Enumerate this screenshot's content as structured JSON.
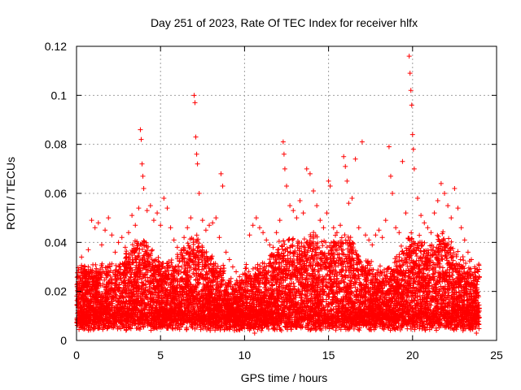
{
  "chart_data": {
    "type": "scatter",
    "title": "Day 251 of 2023, Rate Of TEC Index for receiver hlfx",
    "xlabel": "GPS time / hours",
    "ylabel": "ROTI / TECUs",
    "xlim": [
      0,
      25
    ],
    "ylim": [
      0,
      0.12
    ],
    "x_ticks": [
      "0",
      "5",
      "10",
      "15",
      "20",
      "25"
    ],
    "y_ticks": [
      "0",
      "0.02",
      "0.04",
      "0.06",
      "0.08",
      "0.1",
      "0.12"
    ],
    "grid": true,
    "marker": "+",
    "color": "#ff0000",
    "series": [
      {
        "points": [
          [
            0.1,
            0.024
          ],
          [
            0.3,
            0.034
          ],
          [
            0.5,
            0.03
          ],
          [
            0.7,
            0.037
          ],
          [
            0.9,
            0.049
          ],
          [
            1.1,
            0.046
          ],
          [
            1.3,
            0.048
          ],
          [
            1.5,
            0.039
          ],
          [
            1.7,
            0.045
          ],
          [
            1.9,
            0.05
          ],
          [
            2.1,
            0.043
          ],
          [
            2.3,
            0.036
          ],
          [
            2.5,
            0.04
          ],
          [
            2.7,
            0.042
          ],
          [
            2.9,
            0.038
          ],
          [
            3.1,
            0.044
          ],
          [
            3.3,
            0.051
          ],
          [
            3.5,
            0.047
          ],
          [
            3.7,
            0.054
          ],
          [
            3.8,
            0.086
          ],
          [
            3.85,
            0.082
          ],
          [
            3.9,
            0.072
          ],
          [
            3.95,
            0.067
          ],
          [
            4.0,
            0.062
          ],
          [
            4.2,
            0.053
          ],
          [
            4.4,
            0.055
          ],
          [
            4.6,
            0.049
          ],
          [
            4.8,
            0.052
          ],
          [
            5.0,
            0.047
          ],
          [
            5.2,
            0.058
          ],
          [
            5.4,
            0.054
          ],
          [
            5.6,
            0.046
          ],
          [
            5.8,
            0.041
          ],
          [
            6.0,
            0.038
          ],
          [
            6.2,
            0.035
          ],
          [
            6.4,
            0.042
          ],
          [
            6.6,
            0.046
          ],
          [
            6.8,
            0.05
          ],
          [
            7.0,
            0.1
          ],
          [
            7.05,
            0.097
          ],
          [
            7.1,
            0.083
          ],
          [
            7.15,
            0.076
          ],
          [
            7.2,
            0.072
          ],
          [
            7.3,
            0.06
          ],
          [
            7.5,
            0.049
          ],
          [
            7.7,
            0.045
          ],
          [
            7.9,
            0.047
          ],
          [
            8.1,
            0.048
          ],
          [
            8.3,
            0.05
          ],
          [
            8.5,
            0.042
          ],
          [
            8.6,
            0.068
          ],
          [
            8.7,
            0.063
          ],
          [
            8.9,
            0.036
          ],
          [
            9.1,
            0.033
          ],
          [
            9.3,
            0.03
          ],
          [
            9.5,
            0.028
          ],
          [
            9.7,
            0.026
          ],
          [
            9.9,
            0.027
          ],
          [
            10.1,
            0.031
          ],
          [
            10.3,
            0.043
          ],
          [
            10.5,
            0.047
          ],
          [
            10.7,
            0.05
          ],
          [
            10.9,
            0.046
          ],
          [
            11.1,
            0.044
          ],
          [
            11.3,
            0.041
          ],
          [
            11.5,
            0.039
          ],
          [
            11.7,
            0.038
          ],
          [
            11.9,
            0.044
          ],
          [
            12.1,
            0.049
          ],
          [
            12.3,
            0.081
          ],
          [
            12.35,
            0.076
          ],
          [
            12.4,
            0.07
          ],
          [
            12.5,
            0.063
          ],
          [
            12.7,
            0.055
          ],
          [
            12.9,
            0.053
          ],
          [
            13.1,
            0.05
          ],
          [
            13.3,
            0.057
          ],
          [
            13.5,
            0.052
          ],
          [
            13.7,
            0.07
          ],
          [
            13.9,
            0.068
          ],
          [
            14.1,
            0.061
          ],
          [
            14.3,
            0.055
          ],
          [
            14.5,
            0.049
          ],
          [
            14.7,
            0.046
          ],
          [
            14.9,
            0.052
          ],
          [
            15.0,
            0.065
          ],
          [
            15.1,
            0.063
          ],
          [
            15.3,
            0.046
          ],
          [
            15.5,
            0.044
          ],
          [
            15.7,
            0.047
          ],
          [
            15.9,
            0.075
          ],
          [
            16.0,
            0.071
          ],
          [
            16.1,
            0.065
          ],
          [
            16.2,
            0.056
          ],
          [
            16.4,
            0.058
          ],
          [
            16.6,
            0.074
          ],
          [
            16.8,
            0.046
          ],
          [
            17.0,
            0.081
          ],
          [
            17.2,
            0.043
          ],
          [
            17.4,
            0.041
          ],
          [
            17.6,
            0.039
          ],
          [
            17.8,
            0.043
          ],
          [
            18.0,
            0.045
          ],
          [
            18.2,
            0.042
          ],
          [
            18.4,
            0.049
          ],
          [
            18.6,
            0.079
          ],
          [
            18.7,
            0.067
          ],
          [
            18.8,
            0.06
          ],
          [
            19.0,
            0.046
          ],
          [
            19.2,
            0.044
          ],
          [
            19.4,
            0.073
          ],
          [
            19.6,
            0.052
          ],
          [
            19.8,
            0.116
          ],
          [
            19.85,
            0.109
          ],
          [
            19.9,
            0.102
          ],
          [
            19.95,
            0.096
          ],
          [
            20.0,
            0.084
          ],
          [
            20.05,
            0.078
          ],
          [
            20.1,
            0.07
          ],
          [
            20.3,
            0.058
          ],
          [
            20.5,
            0.051
          ],
          [
            20.7,
            0.048
          ],
          [
            20.9,
            0.046
          ],
          [
            21.1,
            0.044
          ],
          [
            21.3,
            0.052
          ],
          [
            21.5,
            0.057
          ],
          [
            21.7,
            0.064
          ],
          [
            21.9,
            0.06
          ],
          [
            22.1,
            0.055
          ],
          [
            22.3,
            0.05
          ],
          [
            22.5,
            0.062
          ],
          [
            22.7,
            0.054
          ],
          [
            22.9,
            0.046
          ],
          [
            23.1,
            0.041
          ],
          [
            23.3,
            0.036
          ],
          [
            23.5,
            0.033
          ],
          [
            23.7,
            0.03
          ],
          [
            23.9,
            0.028
          ],
          [
            0.2,
            0.006
          ],
          [
            0.6,
            0.008
          ],
          [
            1.0,
            0.007
          ],
          [
            1.4,
            0.009
          ],
          [
            1.8,
            0.008
          ],
          [
            2.2,
            0.007
          ],
          [
            2.6,
            0.009
          ],
          [
            3.0,
            0.008
          ],
          [
            3.4,
            0.007
          ],
          [
            3.8,
            0.009
          ],
          [
            4.2,
            0.008
          ],
          [
            4.6,
            0.007
          ],
          [
            5.0,
            0.006
          ],
          [
            5.4,
            0.008
          ],
          [
            5.8,
            0.009
          ],
          [
            6.2,
            0.007
          ],
          [
            6.6,
            0.008
          ],
          [
            7.0,
            0.007
          ],
          [
            7.4,
            0.006
          ],
          [
            7.8,
            0.008
          ],
          [
            8.2,
            0.007
          ],
          [
            8.6,
            0.006
          ],
          [
            9.0,
            0.005
          ],
          [
            9.4,
            0.004
          ],
          [
            9.8,
            0.005
          ],
          [
            10.2,
            0.006
          ],
          [
            10.6,
            0.003
          ],
          [
            11.0,
            0.004
          ],
          [
            11.4,
            0.006
          ],
          [
            11.8,
            0.005
          ],
          [
            12.2,
            0.004
          ],
          [
            12.6,
            0.006
          ],
          [
            13.0,
            0.007
          ],
          [
            13.4,
            0.008
          ],
          [
            13.8,
            0.006
          ],
          [
            14.2,
            0.007
          ],
          [
            14.6,
            0.008
          ],
          [
            15.0,
            0.007
          ],
          [
            15.4,
            0.006
          ],
          [
            15.8,
            0.008
          ],
          [
            16.2,
            0.007
          ],
          [
            16.6,
            0.008
          ],
          [
            17.0,
            0.009
          ],
          [
            17.4,
            0.008
          ],
          [
            17.8,
            0.007
          ],
          [
            18.2,
            0.006
          ],
          [
            18.6,
            0.008
          ],
          [
            19.0,
            0.007
          ],
          [
            19.4,
            0.006
          ],
          [
            19.8,
            0.008
          ],
          [
            20.2,
            0.007
          ],
          [
            20.6,
            0.006
          ],
          [
            21.0,
            0.007
          ],
          [
            21.4,
            0.005
          ],
          [
            21.8,
            0.006
          ],
          [
            22.2,
            0.007
          ],
          [
            22.6,
            0.006
          ],
          [
            23.0,
            0.004
          ],
          [
            23.4,
            0.005
          ],
          [
            23.8,
            0.003
          ]
        ]
      }
    ]
  }
}
